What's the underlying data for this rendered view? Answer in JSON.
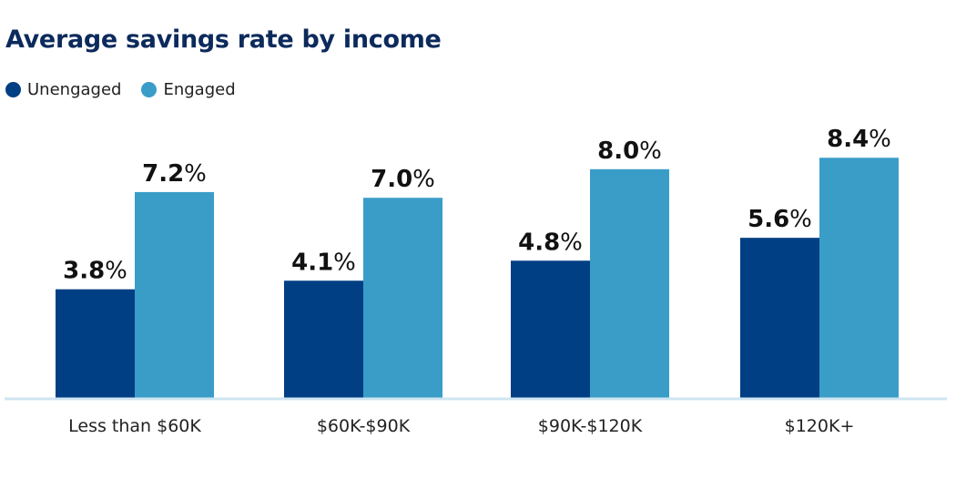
{
  "chart_data": {
    "type": "bar",
    "title": "Average savings rate by income",
    "categories": [
      "Less than $60K",
      "$60K-$90K",
      "$90K-$120K",
      "$120K+"
    ],
    "series": [
      {
        "name": "Unengaged",
        "values": [
          3.8,
          4.1,
          4.8,
          5.6
        ],
        "labels": [
          "3.8",
          "4.1",
          "4.8",
          "5.6"
        ],
        "color": "#003f84"
      },
      {
        "name": "Engaged",
        "values": [
          7.2,
          7.0,
          8.0,
          8.4
        ],
        "labels": [
          "7.2",
          "7.0",
          "8.0",
          "8.4"
        ],
        "color": "#3a9dc8"
      }
    ],
    "value_suffix": "%",
    "ylim": [
      0,
      10
    ],
    "grid": false,
    "legend": "top-left",
    "axis_color": "#cfe5f2"
  }
}
